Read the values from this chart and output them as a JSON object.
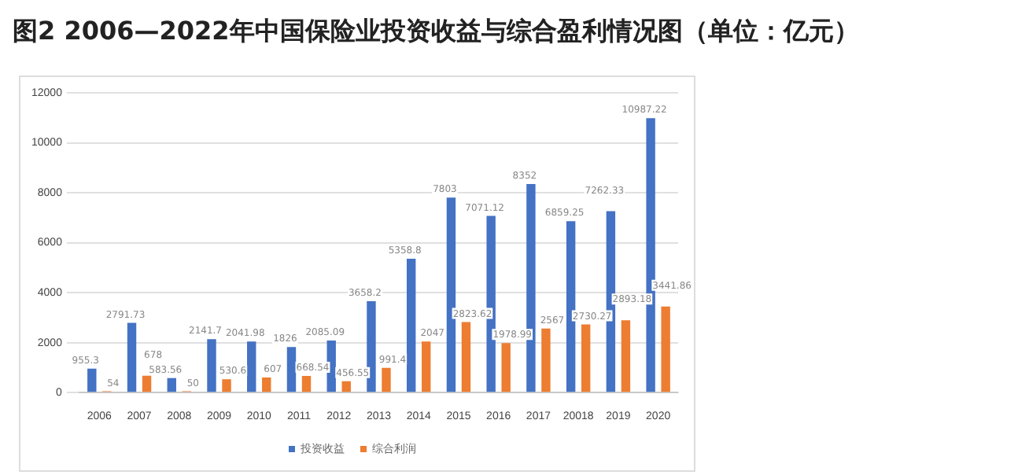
{
  "chart_data": {
    "type": "bar",
    "title": "图2  2006—2022年中国保险业投资收益与综合盈利情况图（单位：亿元）",
    "categories": [
      "2006",
      "2007",
      "2008",
      "2009",
      "2010",
      "2011",
      "2012",
      "2013",
      "2014",
      "2015",
      "2016",
      "2017",
      "20018",
      "2019",
      "2020"
    ],
    "series": [
      {
        "name": "投资收益",
        "color": "#4472c4",
        "values": [
          955.3,
          2791.73,
          583.56,
          2141.7,
          2041.98,
          1826,
          2085.09,
          3658.2,
          5358.8,
          7803,
          7071.12,
          8352,
          6859.25,
          7262.33,
          10987.22
        ]
      },
      {
        "name": "综合利润",
        "color": "#ed7d31",
        "values": [
          54,
          678,
          50,
          530.6,
          607,
          668.54,
          456.55,
          991.4,
          2047,
          2823.62,
          1978.99,
          2567,
          2730.27,
          2893.18,
          3441.86
        ]
      }
    ],
    "ylim": [
      0,
      12000
    ],
    "yticks": [
      0,
      2000,
      4000,
      6000,
      8000,
      10000,
      12000
    ],
    "grid": "y",
    "legend": "bottom",
    "data_labels": true
  }
}
